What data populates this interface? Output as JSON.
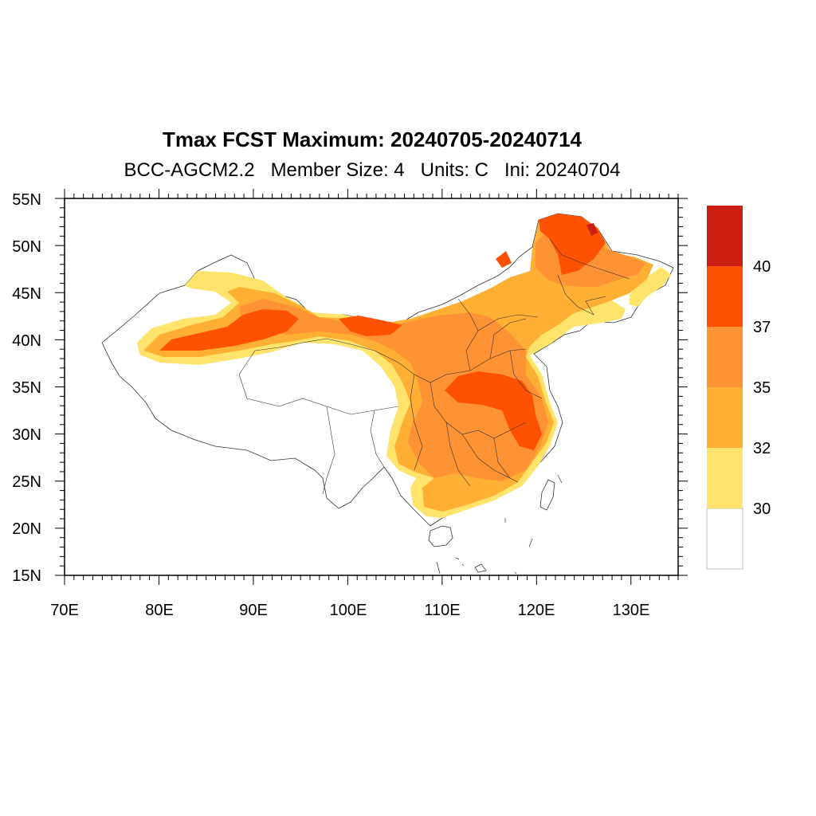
{
  "title": "Tmax FCST Maximum: 20240705-20240714",
  "subtitle": {
    "model": "BCC-AGCM2.2",
    "members": "Member Size: 4",
    "units": "Units: C",
    "init": "Ini: 20240704"
  },
  "map": {
    "lon_range": [
      70,
      135
    ],
    "lat_range": [
      15,
      55
    ],
    "x_ticks": [
      "70E",
      "80E",
      "90E",
      "100E",
      "110E",
      "120E",
      "130E"
    ],
    "y_ticks": [
      "15N",
      "20N",
      "25N",
      "30N",
      "35N",
      "40N",
      "45N",
      "50N",
      "55N"
    ]
  },
  "colorbar": {
    "levels": [
      "30",
      "32",
      "35",
      "37",
      "40"
    ],
    "colors": [
      "#ffffff",
      "#ffe36b",
      "#ffaf33",
      "#ff9233",
      "#ff5200",
      "#cc1f14"
    ]
  }
}
